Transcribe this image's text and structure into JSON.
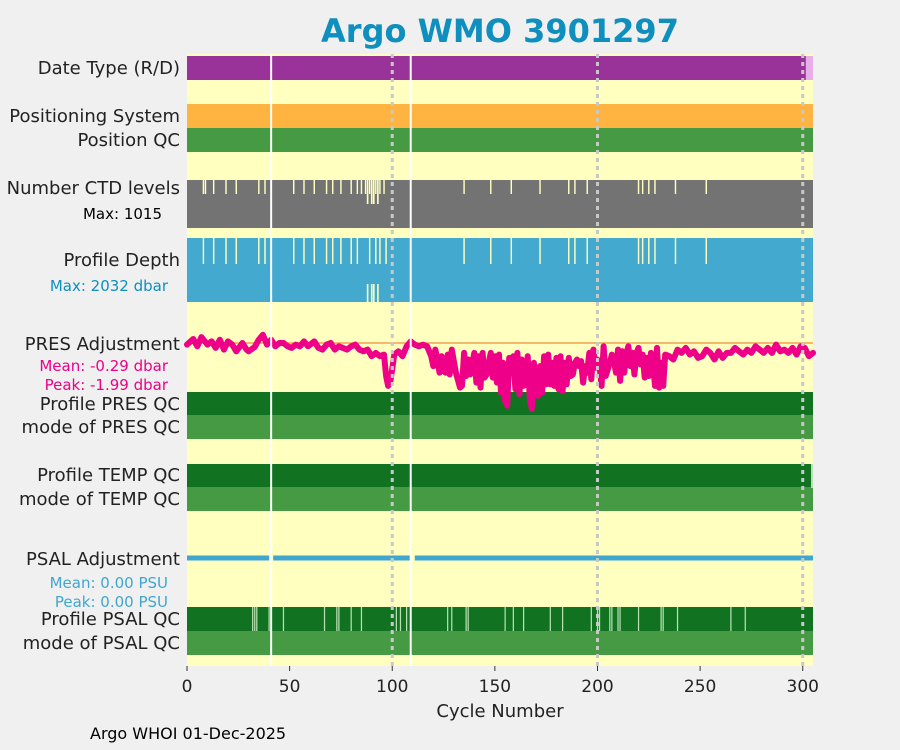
{
  "title": "Argo WMO 3901297",
  "footer": "Argo WHOI 01-Dec-2025",
  "colors": {
    "background": "#f0f0f0",
    "plot_bg": "#ffffc0",
    "date_type": "#993399",
    "date_type_end": "#e8b0e8",
    "positioning": "#ffb340",
    "qc_dark": "#117322",
    "qc_mid": "#469a44",
    "ctd": "#737373",
    "depth": "#44a9cf",
    "pres_adj": "#ee0088",
    "pres_ref": "#f2a050",
    "psal_adj": "#3fa6d0",
    "title": "#0e8fbd",
    "grid": "#c8c8c8"
  },
  "chart_data": {
    "type": "multi-row status plot",
    "title": "Argo WMO 3901297",
    "xlabel": "Cycle Number",
    "xlim": [
      0,
      305
    ],
    "xticks": [
      0,
      50,
      100,
      150,
      200,
      250,
      300
    ],
    "dotted_gridlines_at": [
      100,
      200,
      300
    ],
    "solid_white_lines_at": [
      41,
      109
    ],
    "rows": [
      {
        "label": "Date Type (R/D)",
        "kind": "bar",
        "color_key": "date_type",
        "end_segment": [
          301,
          305
        ]
      },
      {
        "label": "Positioning System",
        "kind": "bar",
        "color_key": "positioning"
      },
      {
        "label": "Position QC",
        "kind": "bar",
        "color_key": "qc_mid"
      },
      {
        "label": "Number CTD levels",
        "kind": "bar",
        "color_key": "ctd",
        "note": "Max: 1015",
        "max": 1015
      },
      {
        "label": "Profile Depth",
        "kind": "bar",
        "color_key": "depth",
        "note": "Max: 2032 dbar",
        "max": 2032
      },
      {
        "label": "PRES Adjustment",
        "kind": "line",
        "color_key": "pres_adj",
        "mean_text": "Mean: -0.29 dbar",
        "peak_text": "Peak: -1.99 dbar",
        "mean": -0.29,
        "peak": -1.99
      },
      {
        "label": "Profile PRES QC",
        "kind": "bar",
        "color_key": "qc_dark"
      },
      {
        "label": "mode of PRES QC",
        "kind": "bar",
        "color_key": "qc_mid"
      },
      {
        "label": "Profile TEMP QC",
        "kind": "bar",
        "color_key": "qc_dark"
      },
      {
        "label": "mode of TEMP QC",
        "kind": "bar",
        "color_key": "qc_mid"
      },
      {
        "label": "PSAL Adjustment",
        "kind": "line",
        "color_key": "psal_adj",
        "mean_text": "Mean: 0.00 PSU",
        "peak_text": "Peak: 0.00 PSU",
        "mean": 0.0,
        "peak": 0.0
      },
      {
        "label": "Profile PSAL QC",
        "kind": "bar",
        "color_key": "qc_dark"
      },
      {
        "label": "mode of PSAL QC",
        "kind": "bar",
        "color_key": "qc_mid"
      }
    ],
    "ctd_gap_cycles": [
      8,
      9,
      13,
      19,
      24,
      35,
      38,
      52,
      57,
      62,
      68,
      71,
      75,
      80,
      83,
      85,
      87,
      89,
      92,
      94,
      96,
      135,
      148,
      158,
      172,
      186,
      189,
      195,
      220,
      222,
      228,
      225,
      238,
      253
    ],
    "ctd_partial_cycles": [
      88,
      90,
      91,
      93
    ],
    "depth_gap_cycles": [
      8,
      13,
      19,
      24,
      35,
      38,
      52,
      57,
      62,
      68,
      71,
      75,
      80,
      83,
      89,
      92,
      94,
      97,
      135,
      148,
      158,
      172,
      186,
      189,
      195,
      220,
      222,
      228,
      225,
      238,
      253
    ],
    "depth_partial_cycles": [
      88,
      90,
      91,
      93
    ],
    "psal_qc_gap_cycles": [
      32,
      33,
      34,
      40,
      47,
      67,
      73,
      74,
      80,
      85,
      102,
      104,
      107,
      127,
      129,
      136,
      137,
      155,
      159,
      164,
      177,
      183,
      197,
      200,
      201,
      206,
      207,
      210,
      211,
      220,
      231,
      232,
      239,
      265,
      272
    ],
    "pres_adjustment": [
      [
        0,
        -0.05
      ],
      [
        3,
        0.12
      ],
      [
        5,
        -0.1
      ],
      [
        7,
        0.18
      ],
      [
        10,
        -0.05
      ],
      [
        12,
        0.05
      ],
      [
        14,
        -0.15
      ],
      [
        16,
        0.1
      ],
      [
        18,
        -0.2
      ],
      [
        20,
        0.05
      ],
      [
        22,
        -0.05
      ],
      [
        24,
        -0.25
      ],
      [
        27,
        0.0
      ],
      [
        29,
        -0.2
      ],
      [
        30,
        -0.25
      ],
      [
        33,
        -0.12
      ],
      [
        35,
        0.1
      ],
      [
        37,
        0.25
      ],
      [
        39,
        -0.05
      ],
      [
        41,
        0.1
      ],
      [
        43,
        -0.1
      ],
      [
        45,
        0.0
      ],
      [
        47,
        0.0
      ],
      [
        49,
        -0.1
      ],
      [
        51,
        -0.15
      ],
      [
        53,
        -0.05
      ],
      [
        55,
        -0.1
      ],
      [
        57,
        0.05
      ],
      [
        59,
        -0.1
      ],
      [
        62,
        0.05
      ],
      [
        64,
        -0.15
      ],
      [
        66,
        -0.2
      ],
      [
        68,
        -0.05
      ],
      [
        70,
        0.0
      ],
      [
        72,
        -0.2
      ],
      [
        74,
        -0.1
      ],
      [
        76,
        -0.15
      ],
      [
        78,
        -0.2
      ],
      [
        80,
        -0.1
      ],
      [
        82,
        -0.05
      ],
      [
        84,
        -0.2
      ],
      [
        86,
        -0.25
      ],
      [
        88,
        -0.2
      ],
      [
        90,
        -0.4
      ],
      [
        92,
        -0.3
      ],
      [
        94,
        -0.4
      ],
      [
        96,
        -0.35
      ],
      [
        97,
        -1.0
      ],
      [
        98,
        -1.3
      ],
      [
        99,
        -1.2
      ],
      [
        101,
        -0.35
      ],
      [
        103,
        -0.25
      ],
      [
        105,
        -0.4
      ],
      [
        107,
        -0.1
      ],
      [
        109,
        0.05
      ],
      [
        111,
        -0.05
      ],
      [
        113,
        -0.1
      ],
      [
        115,
        -0.05
      ],
      [
        117,
        -0.1
      ],
      [
        119,
        -0.4
      ],
      [
        120,
        -0.7
      ],
      [
        121,
        -0.2
      ],
      [
        122,
        -0.5
      ],
      [
        123,
        -0.9
      ],
      [
        124,
        -0.4
      ],
      [
        125,
        -0.85
      ],
      [
        126,
        -0.9
      ],
      [
        127,
        -0.35
      ],
      [
        128,
        -0.95
      ],
      [
        129,
        -0.2
      ],
      [
        131,
        -0.9
      ],
      [
        133,
        -1.35
      ],
      [
        134,
        -1.3
      ],
      [
        135,
        -0.3
      ],
      [
        136,
        -1.0
      ],
      [
        137,
        -0.5
      ],
      [
        138,
        -0.95
      ],
      [
        140,
        -0.3
      ],
      [
        141,
        -1.2
      ],
      [
        142,
        -0.4
      ],
      [
        143,
        -1.35
      ],
      [
        144,
        -0.3
      ],
      [
        145,
        -1.05
      ],
      [
        146,
        -0.95
      ],
      [
        147,
        -0.6
      ],
      [
        148,
        -0.3
      ],
      [
        149,
        -1.05
      ],
      [
        150,
        -0.4
      ],
      [
        151,
        -1.2
      ],
      [
        152,
        -0.35
      ],
      [
        153,
        -1.5
      ],
      [
        154,
        -0.6
      ],
      [
        155,
        -1.75
      ],
      [
        156,
        -1.9
      ],
      [
        157,
        -0.45
      ],
      [
        158,
        -0.9
      ],
      [
        159,
        -0.4
      ],
      [
        160,
        -1.4
      ],
      [
        161,
        -0.3
      ],
      [
        162,
        -1.55
      ],
      [
        163,
        -0.5
      ],
      [
        164,
        -1.3
      ],
      [
        165,
        -1.2
      ],
      [
        166,
        -0.4
      ],
      [
        167,
        -1.7
      ],
      [
        168,
        -1.99
      ],
      [
        169,
        -0.6
      ],
      [
        170,
        -1.5
      ],
      [
        171,
        -1.6
      ],
      [
        172,
        -0.7
      ],
      [
        173,
        -1.5
      ],
      [
        174,
        -0.4
      ],
      [
        175,
        -1.25
      ],
      [
        176,
        -0.35
      ],
      [
        177,
        -1.25
      ],
      [
        178,
        -0.6
      ],
      [
        179,
        -1.3
      ],
      [
        180,
        -0.45
      ],
      [
        181,
        -1.4
      ],
      [
        182,
        -0.4
      ],
      [
        183,
        -1.45
      ],
      [
        184,
        -0.6
      ],
      [
        185,
        -1.25
      ],
      [
        186,
        -0.45
      ],
      [
        187,
        -1.0
      ],
      [
        188,
        -0.95
      ],
      [
        189,
        -0.6
      ],
      [
        190,
        -0.5
      ],
      [
        191,
        -0.7
      ],
      [
        192,
        -0.55
      ],
      [
        193,
        -1.2
      ],
      [
        194,
        -0.7
      ],
      [
        195,
        -0.9
      ],
      [
        196,
        -0.3
      ],
      [
        197,
        -1.1
      ],
      [
        198,
        -0.2
      ],
      [
        199,
        -0.75
      ],
      [
        200,
        -0.5
      ],
      [
        201,
        -0.7
      ],
      [
        202,
        -1.3
      ],
      [
        203,
        -0.1
      ],
      [
        204,
        -1.0
      ],
      [
        205,
        -0.8
      ],
      [
        206,
        -0.6
      ],
      [
        207,
        -0.35
      ],
      [
        208,
        -0.55
      ],
      [
        209,
        -0.9
      ],
      [
        210,
        -0.2
      ],
      [
        211,
        -1.15
      ],
      [
        212,
        -0.25
      ],
      [
        213,
        -0.9
      ],
      [
        214,
        -0.35
      ],
      [
        215,
        -0.1
      ],
      [
        216,
        -0.7
      ],
      [
        217,
        -0.3
      ],
      [
        218,
        -0.95
      ],
      [
        219,
        -0.3
      ],
      [
        220,
        -0.15
      ],
      [
        221,
        -0.65
      ],
      [
        222,
        -0.35
      ],
      [
        223,
        -1.05
      ],
      [
        224,
        -0.45
      ],
      [
        225,
        -1.0
      ],
      [
        226,
        -0.3
      ],
      [
        227,
        -0.6
      ],
      [
        228,
        -1.3
      ],
      [
        229,
        -0.15
      ],
      [
        230,
        -1.35
      ],
      [
        231,
        -0.6
      ],
      [
        232,
        -1.3
      ],
      [
        233,
        -0.35
      ],
      [
        235,
        -0.4
      ],
      [
        237,
        -0.5
      ],
      [
        239,
        -0.2
      ],
      [
        241,
        -0.3
      ],
      [
        243,
        -0.15
      ],
      [
        245,
        -0.35
      ],
      [
        247,
        -0.25
      ],
      [
        249,
        -0.45
      ],
      [
        251,
        -0.4
      ],
      [
        253,
        -0.2
      ],
      [
        255,
        -0.3
      ],
      [
        257,
        -0.5
      ],
      [
        259,
        -0.25
      ],
      [
        261,
        -0.45
      ],
      [
        263,
        -0.3
      ],
      [
        265,
        -0.3
      ],
      [
        267,
        -0.15
      ],
      [
        269,
        -0.25
      ],
      [
        271,
        -0.35
      ],
      [
        273,
        -0.2
      ],
      [
        275,
        -0.3
      ],
      [
        277,
        -0.1
      ],
      [
        279,
        -0.2
      ],
      [
        281,
        -0.3
      ],
      [
        283,
        -0.15
      ],
      [
        285,
        -0.3
      ],
      [
        287,
        -0.05
      ],
      [
        289,
        -0.25
      ],
      [
        291,
        -0.2
      ],
      [
        293,
        -0.3
      ],
      [
        295,
        -0.15
      ],
      [
        297,
        -0.35
      ],
      [
        299,
        -0.1
      ],
      [
        301,
        -0.15
      ],
      [
        303,
        -0.4
      ],
      [
        305,
        -0.3
      ]
    ],
    "psal_adjustment_gaps": [
      41,
      110
    ]
  }
}
